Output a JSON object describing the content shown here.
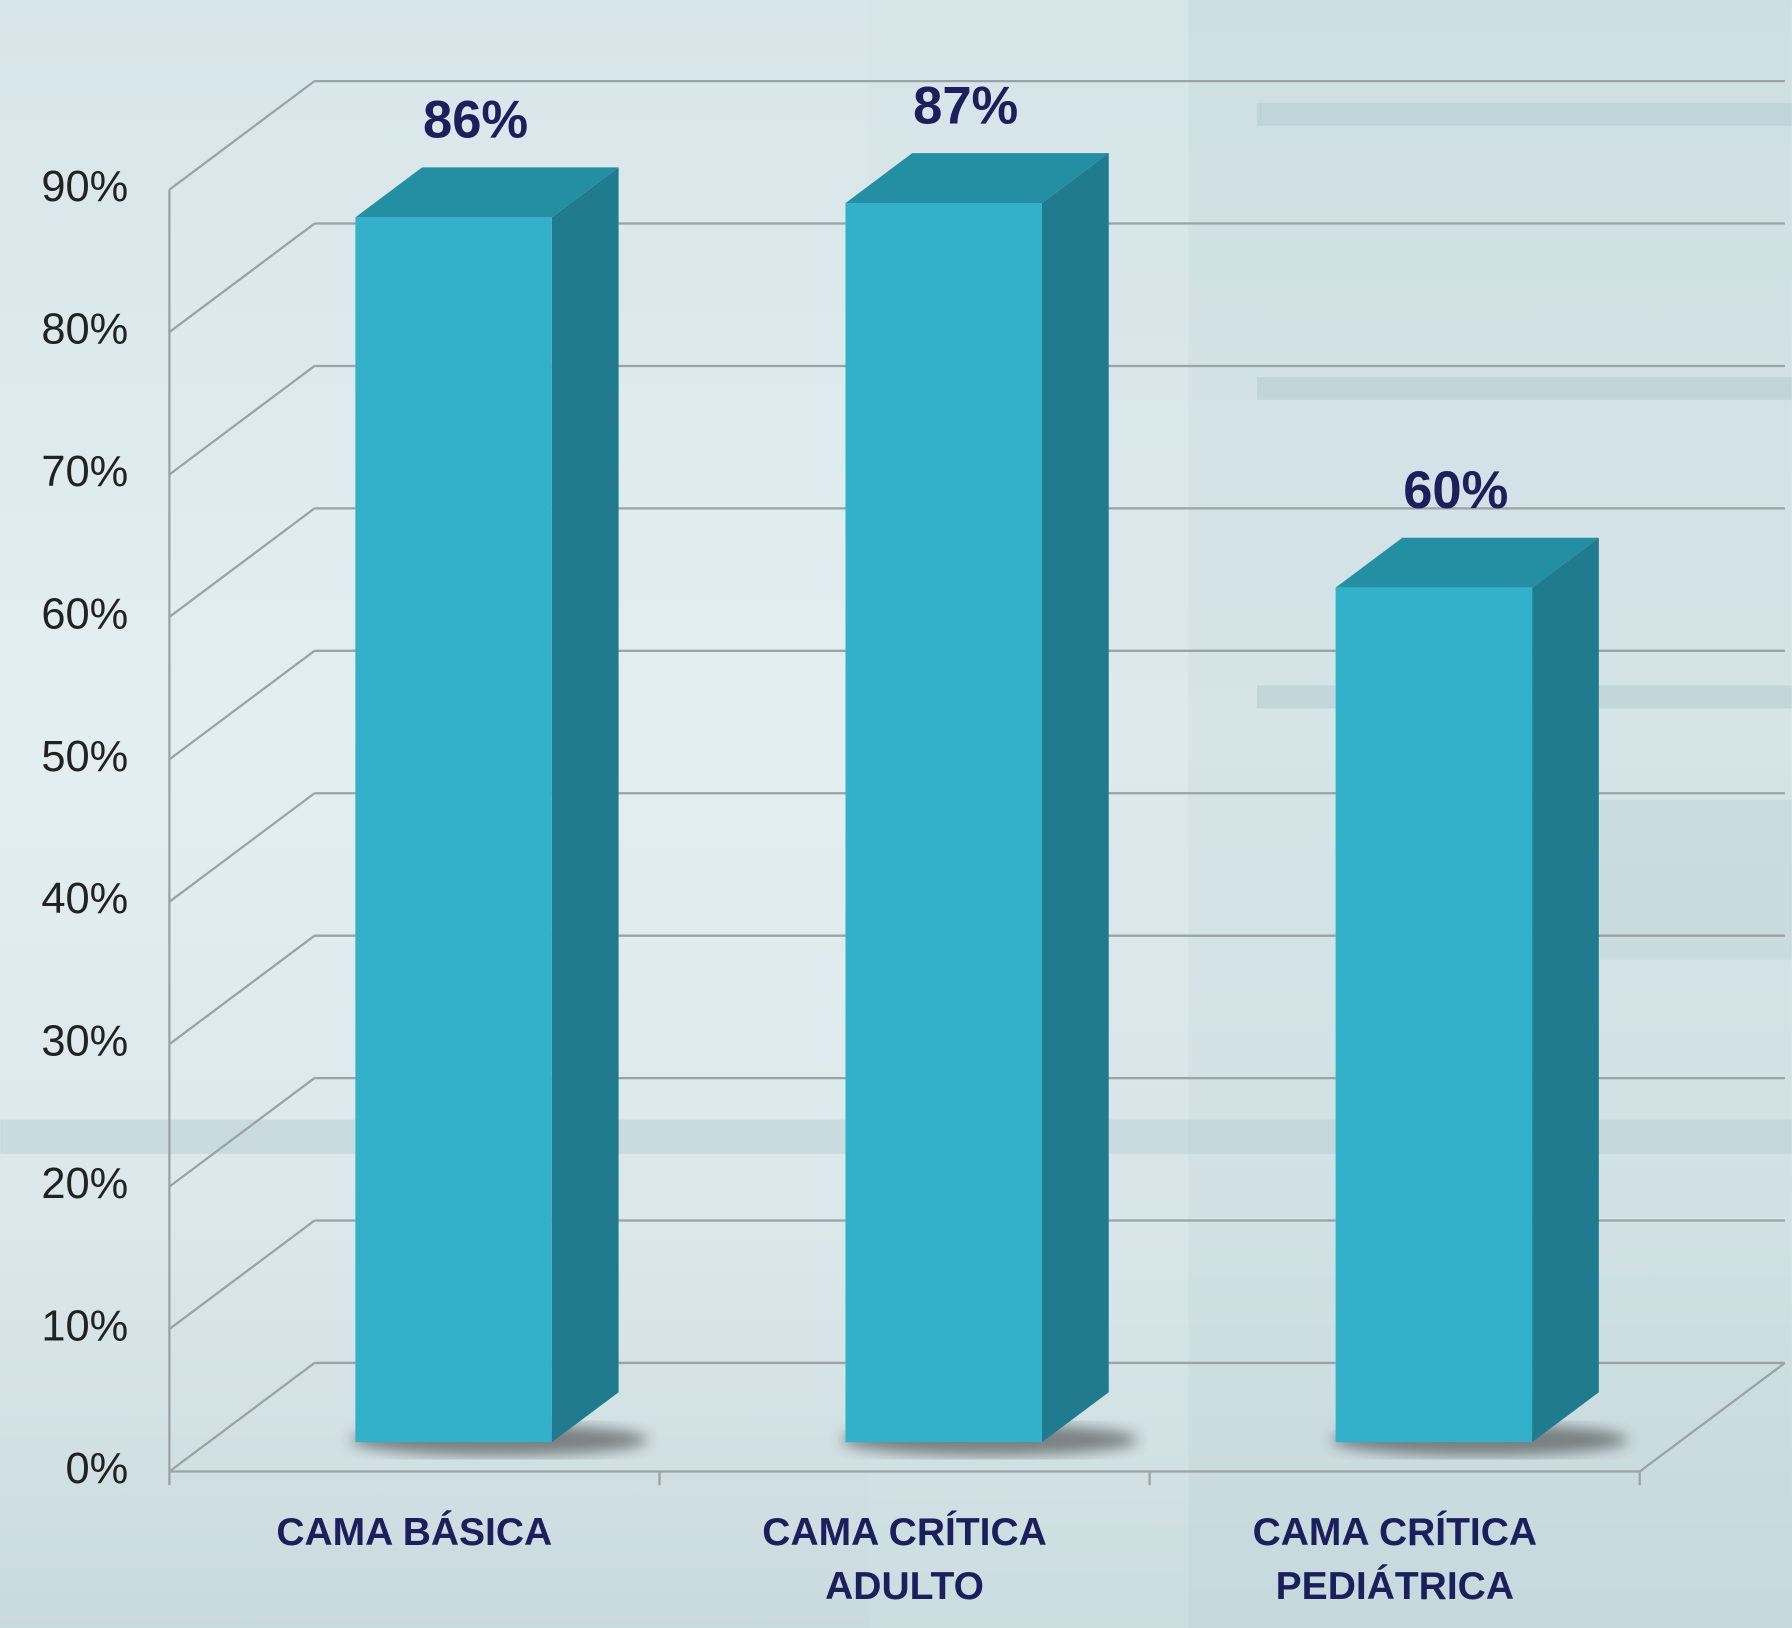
{
  "chart_data": {
    "type": "bar3d",
    "categories": [
      "CAMA BÁSICA",
      "CAMA CRÍTICA ADULTO",
      "CAMA CRÍTICA PEDIÁTRICA"
    ],
    "values": [
      86,
      87,
      60
    ],
    "value_labels": [
      "86%",
      "87%",
      "60%"
    ],
    "color": "#33b0ca",
    "ylim": [
      0,
      90
    ],
    "yticks": [
      {
        "value": 0,
        "label": "0%"
      },
      {
        "value": 10,
        "label": "10%"
      },
      {
        "value": 20,
        "label": "20%"
      },
      {
        "value": 30,
        "label": "30%"
      },
      {
        "value": 40,
        "label": "40%"
      },
      {
        "value": 50,
        "label": "50%"
      },
      {
        "value": 60,
        "label": "60%"
      },
      {
        "value": 70,
        "label": "70%"
      },
      {
        "value": 80,
        "label": "80%"
      },
      {
        "value": 90,
        "label": "90%"
      }
    ],
    "grid": true
  }
}
